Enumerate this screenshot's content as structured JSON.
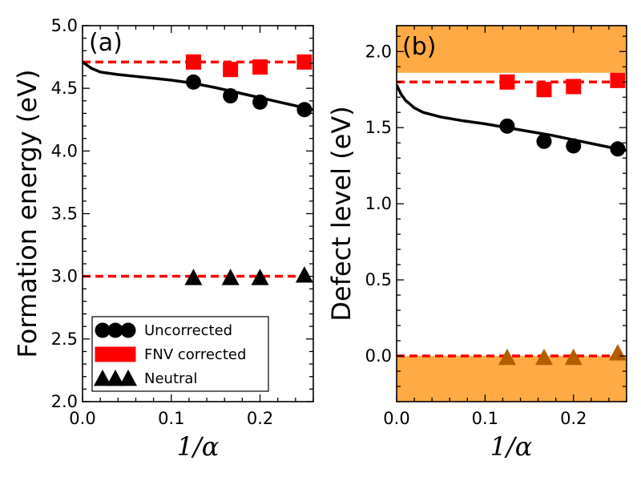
{
  "chart_data": [
    {
      "type": "scatter",
      "panel_label": "(a)",
      "xlabel": "1/α",
      "ylabel": "Formation energy (eV)",
      "xlim": [
        0.0,
        0.26
      ],
      "ylim": [
        2.0,
        5.0
      ],
      "xticks": [
        "0.0",
        "0.1",
        "0.2"
      ],
      "yticks": [
        "2.0",
        "2.5",
        "3.0",
        "3.5",
        "4.0",
        "4.5",
        "5.0"
      ],
      "grid": false,
      "legend_position": "lower-left",
      "series": [
        {
          "name": "Uncorrected",
          "marker": "circle",
          "color": "#000000",
          "x": [
            0.125,
            0.1667,
            0.2,
            0.25
          ],
          "y": [
            4.55,
            4.44,
            4.39,
            4.33
          ]
        },
        {
          "name": "FNV corrected",
          "marker": "square",
          "color": "#ff0000",
          "x": [
            0.125,
            0.1667,
            0.2,
            0.25
          ],
          "y": [
            4.71,
            4.65,
            4.67,
            4.71
          ]
        },
        {
          "name": "Neutral",
          "marker": "triangle",
          "color": "#000000",
          "x": [
            0.125,
            0.1667,
            0.2,
            0.25
          ],
          "y": [
            2.99,
            2.99,
            2.99,
            3.01
          ]
        }
      ],
      "fit_curve": {
        "color": "#000000",
        "x": [
          0.0,
          0.01,
          0.02,
          0.04,
          0.06,
          0.08,
          0.1,
          0.125,
          0.15,
          0.175,
          0.2,
          0.225,
          0.25,
          0.26
        ],
        "y": [
          4.71,
          4.66,
          4.63,
          4.61,
          4.595,
          4.58,
          4.565,
          4.54,
          4.505,
          4.465,
          4.425,
          4.385,
          4.345,
          4.33
        ]
      },
      "reference_lines": [
        {
          "y": 4.71,
          "color": "#ff0000",
          "style": "dashed"
        },
        {
          "y": 3.0,
          "color": "#ff0000",
          "style": "dashed"
        }
      ]
    },
    {
      "type": "scatter",
      "panel_label": "(b)",
      "xlabel": "1/α",
      "ylabel": "Defect level (eV)",
      "xlim": [
        0.0,
        0.26
      ],
      "ylim": [
        -0.3,
        2.17
      ],
      "xticks": [
        "0.0",
        "0.1",
        "0.2"
      ],
      "yticks": [
        "0.0",
        "0.5",
        "1.0",
        "1.5",
        "2.0"
      ],
      "grid": false,
      "series": [
        {
          "name": "Uncorrected",
          "marker": "circle",
          "color": "#000000",
          "x": [
            0.125,
            0.1667,
            0.2,
            0.25
          ],
          "y": [
            1.51,
            1.41,
            1.38,
            1.36
          ]
        },
        {
          "name": "FNV corrected",
          "marker": "square",
          "color": "#ff0000",
          "x": [
            0.125,
            0.1667,
            0.2,
            0.25
          ],
          "y": [
            1.8,
            1.75,
            1.77,
            1.81
          ]
        },
        {
          "name": "Neutral",
          "marker": "triangle",
          "color": "#000000",
          "x": [
            0.125,
            0.1667,
            0.2,
            0.25
          ],
          "y": [
            -0.01,
            -0.01,
            -0.01,
            0.02
          ]
        }
      ],
      "fit_curve": {
        "color": "#000000",
        "x": [
          0.0,
          0.005,
          0.01,
          0.02,
          0.03,
          0.05,
          0.075,
          0.1,
          0.125,
          0.15,
          0.175,
          0.2,
          0.225,
          0.25,
          0.26
        ],
        "y": [
          1.78,
          1.72,
          1.68,
          1.63,
          1.6,
          1.57,
          1.545,
          1.525,
          1.5,
          1.475,
          1.45,
          1.42,
          1.39,
          1.36,
          1.35
        ]
      },
      "reference_lines": [
        {
          "y": 1.8,
          "color": "#ff0000",
          "style": "dashed"
        },
        {
          "y": 0.0,
          "color": "#ff0000",
          "style": "dashed"
        }
      ],
      "shaded_bands": [
        {
          "y0": 1.86,
          "y1": 2.17,
          "color": "#ffaa44"
        },
        {
          "y0": -0.3,
          "y1": 0.0,
          "color": "#ffaa44"
        }
      ]
    }
  ]
}
